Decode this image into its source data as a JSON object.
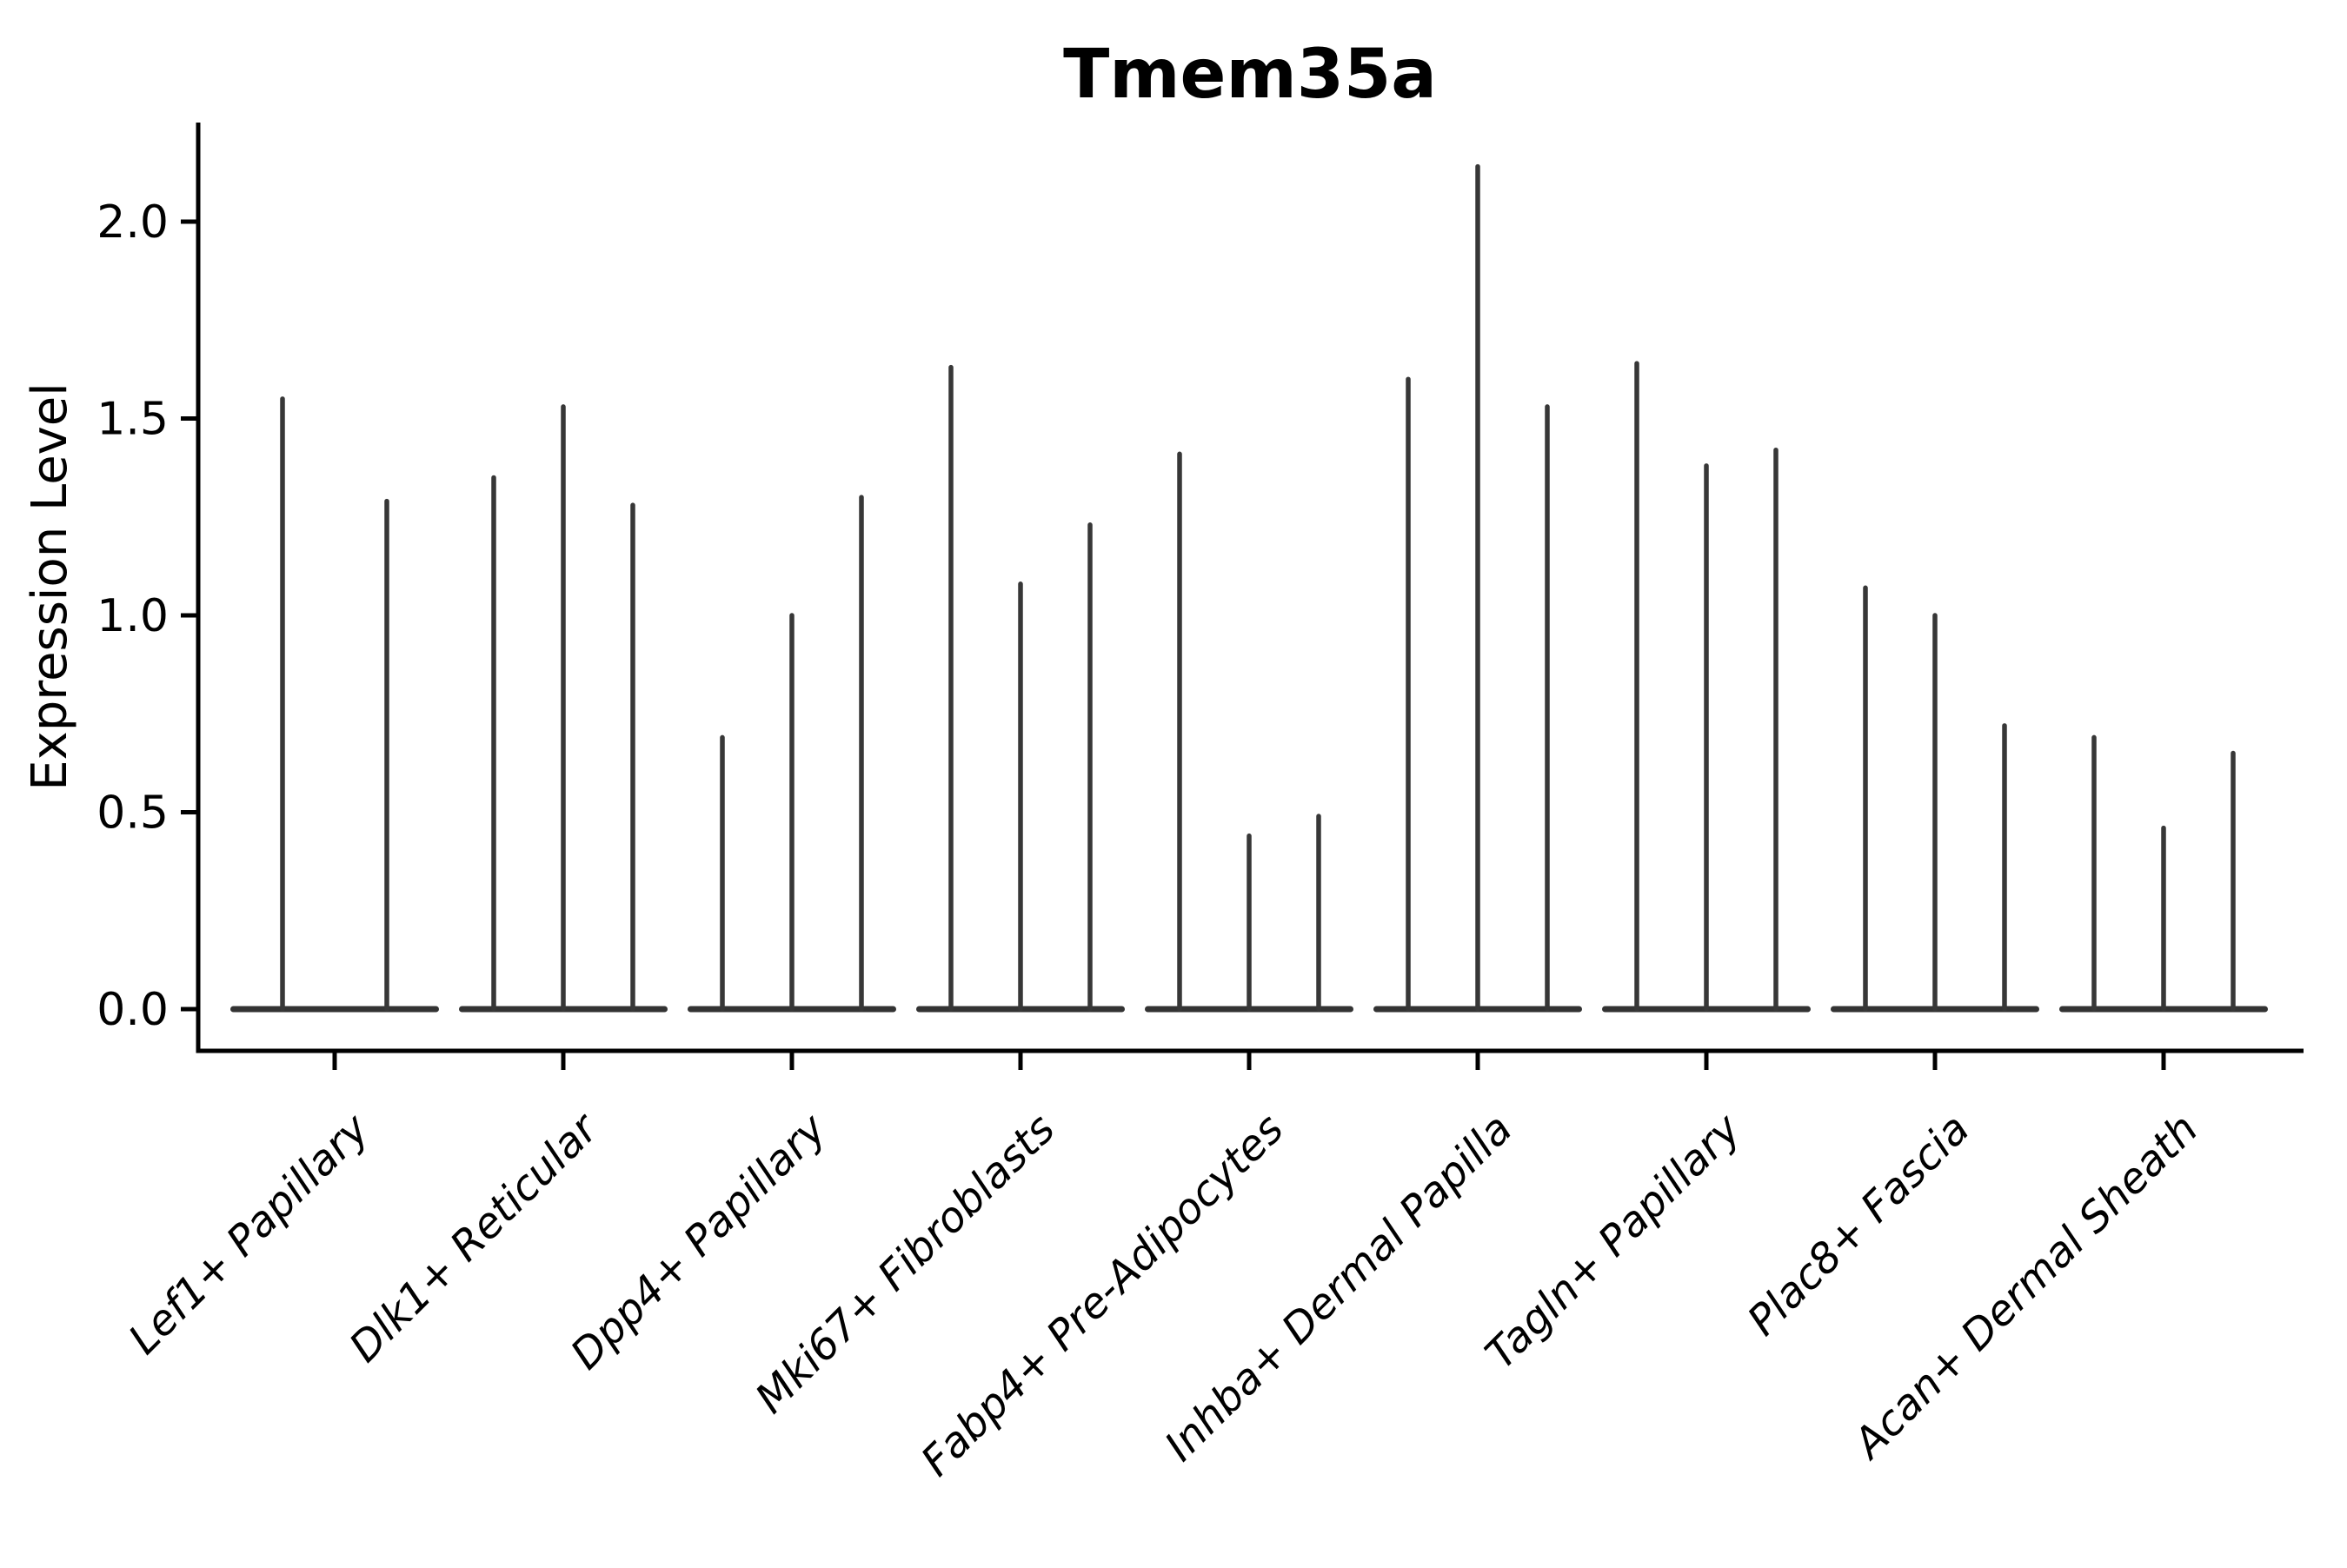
{
  "title": "Tmem35a",
  "ylabel": "Expression Level",
  "colors": {
    "background": "#ffffff",
    "axis": "#000000",
    "text": "#000000",
    "violin": "#373737",
    "violin_base": "#333333"
  },
  "chart_data": {
    "type": "violin",
    "title": "Tmem35a",
    "xlabel": "",
    "ylabel": "Expression Level",
    "ylim": [
      0.0,
      2.25
    ],
    "yticks": [
      0.0,
      0.5,
      1.0,
      1.5,
      2.0
    ],
    "ytick_labels": [
      "0.0",
      "0.5",
      "1.0",
      "1.5",
      "2.0"
    ],
    "grid": false,
    "legend": "none",
    "description": "Narrow spike-shaped violins; most density mass sits flat at 0 (wide flat base), with a thin spike rising to the max expression value for each violin. Each category shows 2-3 violins.",
    "categories": [
      "Lef1+ Papillary",
      "Dlk1+ Reticular",
      "Dpp4+ Papillary",
      "Mki67+ Fibroblasts",
      "Fabp4+ Pre-Adipocytes",
      "Inhba+ Dermal Papilla",
      "Tagln+ Papillary",
      "Plac8+ Fascia",
      "Acan+ Dermal Sheath"
    ],
    "series": [
      {
        "category": "Lef1+ Papillary",
        "spike_maxima": [
          1.55,
          1.29
        ]
      },
      {
        "category": "Dlk1+ Reticular",
        "spike_maxima": [
          1.35,
          1.53,
          1.28
        ]
      },
      {
        "category": "Dpp4+ Papillary",
        "spike_maxima": [
          0.69,
          1.0,
          1.3
        ]
      },
      {
        "category": "Mki67+ Fibroblasts",
        "spike_maxima": [
          1.63,
          1.08,
          1.23
        ]
      },
      {
        "category": "Fabp4+ Pre-Adipocytes",
        "spike_maxima": [
          1.41,
          0.44,
          0.49
        ]
      },
      {
        "category": "Inhba+ Dermal Papilla",
        "spike_maxima": [
          1.6,
          2.14,
          1.53
        ]
      },
      {
        "category": "Tagln+ Papillary",
        "spike_maxima": [
          1.64,
          1.38,
          1.42
        ]
      },
      {
        "category": "Plac8+ Fascia",
        "spike_maxima": [
          1.07,
          1.0,
          0.72
        ]
      },
      {
        "category": "Acan+ Dermal Sheath",
        "spike_maxima": [
          0.69,
          0.46,
          0.65
        ]
      }
    ]
  }
}
